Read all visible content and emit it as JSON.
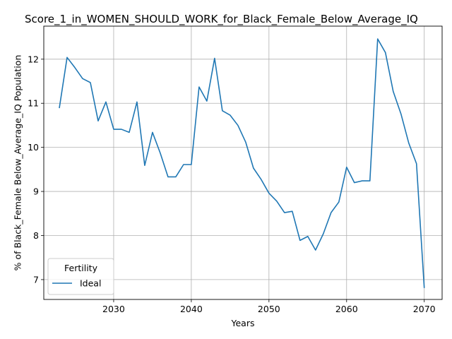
{
  "chart_data": {
    "type": "line",
    "title": "Score_1_in_WOMEN_SHOULD_WORK_for_Black_Female_Below_Average_IQ",
    "xlabel": "Years",
    "ylabel": "% of Black_Female Below_Average_IQ Population",
    "xlim": [
      2021,
      2072.3
    ],
    "ylim": [
      6.55,
      12.75
    ],
    "xticks": [
      2030,
      2040,
      2050,
      2060,
      2070
    ],
    "yticks": [
      7,
      8,
      9,
      10,
      11,
      12
    ],
    "grid": true,
    "legend": {
      "title": "Fertility",
      "placement": "lower-left"
    },
    "series": [
      {
        "name": "Ideal",
        "color": "#1f77b4",
        "x": [
          2023,
          2024,
          2025,
          2026,
          2027,
          2028,
          2029,
          2030,
          2031,
          2032,
          2033,
          2034,
          2035,
          2036,
          2037,
          2038,
          2039,
          2040,
          2041,
          2042,
          2043,
          2044,
          2045,
          2046,
          2047,
          2048,
          2049,
          2050,
          2051,
          2052,
          2053,
          2054,
          2055,
          2056,
          2057,
          2058,
          2059,
          2060,
          2061,
          2062,
          2063,
          2064,
          2065,
          2066,
          2067,
          2068,
          2069,
          2070
        ],
        "y": [
          10.89,
          12.04,
          11.81,
          11.56,
          11.47,
          10.6,
          11.03,
          10.41,
          10.41,
          10.34,
          11.03,
          9.59,
          10.34,
          9.87,
          9.33,
          9.33,
          9.61,
          9.61,
          11.37,
          11.05,
          12.02,
          10.83,
          10.73,
          10.5,
          10.12,
          9.53,
          9.27,
          8.96,
          8.78,
          8.52,
          8.55,
          7.89,
          7.98,
          7.67,
          8.04,
          8.52,
          8.76,
          9.55,
          9.2,
          9.24,
          9.24,
          12.46,
          12.15,
          11.27,
          10.76,
          10.1,
          9.63,
          6.81
        ]
      }
    ]
  }
}
